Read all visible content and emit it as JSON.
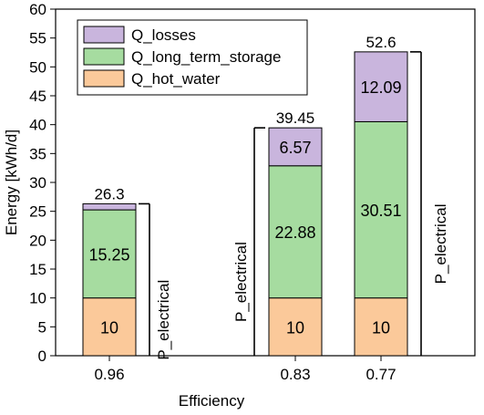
{
  "chart_data": {
    "type": "bar",
    "stacked": true,
    "xlabel": "Efficiency",
    "ylabel": "Energy [kWh/d]",
    "ylim": [
      0,
      60
    ],
    "yticks": [
      0,
      5,
      10,
      15,
      20,
      25,
      30,
      35,
      40,
      45,
      50,
      55,
      60
    ],
    "categories": [
      "0.96",
      "0.83",
      "0.77"
    ],
    "series": [
      {
        "name": "Q_hot_water",
        "values": [
          10,
          10,
          10
        ],
        "color": "#fbc99a",
        "labels": [
          "10",
          "10",
          "10"
        ]
      },
      {
        "name": "Q_long_term_storage",
        "values": [
          15.25,
          22.88,
          30.51
        ],
        "color": "#a6dca0",
        "labels": [
          "15.25",
          "22.88",
          "30.51"
        ]
      },
      {
        "name": "Q_losses",
        "values": [
          1.05,
          6.57,
          12.09
        ],
        "color": "#c9b5dd",
        "labels": [
          "",
          "6.57",
          "12.09"
        ]
      }
    ],
    "totals": [
      "26.3",
      "39.45",
      "52.6"
    ],
    "total_values": [
      26.3,
      39.45,
      52.6
    ],
    "bracket_label": "P_electrical",
    "legend": {
      "position": "top-left",
      "entries": [
        "Q_losses",
        "Q_long_term_storage",
        "Q_hot_water"
      ]
    },
    "grid": false
  }
}
